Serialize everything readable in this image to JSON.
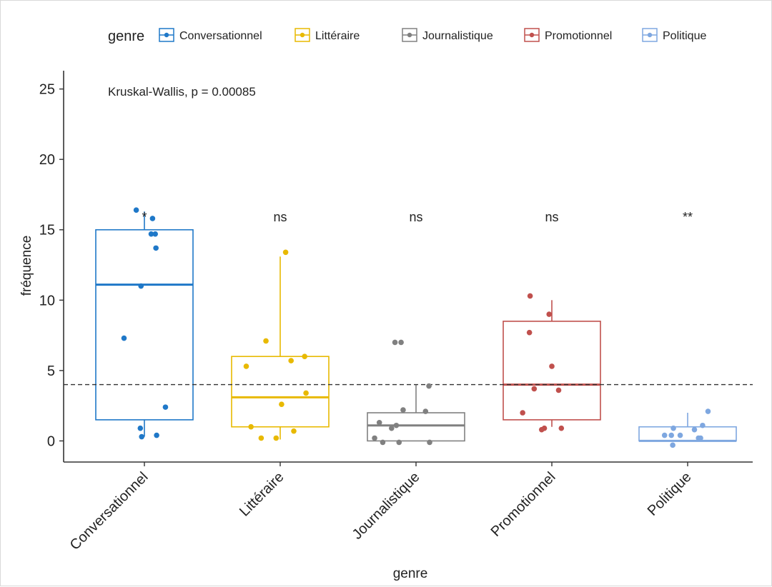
{
  "chart_data": {
    "type": "boxplot",
    "categories": [
      "Conversationnel",
      "Littéraire",
      "Journalistique",
      "Promotionnel",
      "Politique"
    ],
    "colors": [
      "#1f78c8",
      "#e8b900",
      "#808080",
      "#c0504d",
      "#7ea7e0"
    ],
    "boxes": [
      {
        "whisker_low": 0.3,
        "q1": 1.5,
        "median": 11.1,
        "q3": 15.0,
        "whisker_high": 16.3
      },
      {
        "whisker_low": 0.1,
        "q1": 1.0,
        "median": 3.1,
        "q3": 6.0,
        "whisker_high": 13.1
      },
      {
        "whisker_low": 0.0,
        "q1": 0.0,
        "median": 1.1,
        "q3": 2.0,
        "whisker_high": 4.0
      },
      {
        "whisker_low": 1.0,
        "q1": 1.5,
        "median": 4.0,
        "q3": 8.5,
        "whisker_high": 10.0
      },
      {
        "whisker_low": 0.0,
        "q1": 0.0,
        "median": 0.0,
        "q3": 1.0,
        "whisker_high": 2.0
      }
    ],
    "points": [
      {
        "category": 0,
        "jitter": -0.12,
        "value": 16.4
      },
      {
        "category": 0,
        "jitter": 0.12,
        "value": 15.8
      },
      {
        "category": 0,
        "jitter": 0.1,
        "value": 14.7
      },
      {
        "category": 0,
        "jitter": 0.16,
        "value": 14.7
      },
      {
        "category": 0,
        "jitter": 0.17,
        "value": 13.7
      },
      {
        "category": 0,
        "jitter": -0.05,
        "value": 11.0
      },
      {
        "category": 0,
        "jitter": -0.3,
        "value": 7.3
      },
      {
        "category": 0,
        "jitter": 0.31,
        "value": 2.4
      },
      {
        "category": 0,
        "jitter": -0.06,
        "value": 0.9
      },
      {
        "category": 0,
        "jitter": -0.04,
        "value": 0.3
      },
      {
        "category": 0,
        "jitter": 0.18,
        "value": 0.4
      },
      {
        "category": 1,
        "jitter": 0.08,
        "value": 13.4
      },
      {
        "category": 1,
        "jitter": -0.21,
        "value": 7.1
      },
      {
        "category": 1,
        "jitter": 0.36,
        "value": 6.0
      },
      {
        "category": 1,
        "jitter": 0.16,
        "value": 5.7
      },
      {
        "category": 1,
        "jitter": -0.5,
        "value": 5.3
      },
      {
        "category": 1,
        "jitter": 0.38,
        "value": 3.4
      },
      {
        "category": 1,
        "jitter": 0.02,
        "value": 2.6
      },
      {
        "category": 1,
        "jitter": -0.43,
        "value": 1.0
      },
      {
        "category": 1,
        "jitter": 0.2,
        "value": 0.7
      },
      {
        "category": 1,
        "jitter": -0.06,
        "value": 0.2
      },
      {
        "category": 1,
        "jitter": -0.28,
        "value": 0.2
      },
      {
        "category": 2,
        "jitter": -0.31,
        "value": 7.0
      },
      {
        "category": 2,
        "jitter": -0.22,
        "value": 7.0
      },
      {
        "category": 2,
        "jitter": 0.19,
        "value": 3.9
      },
      {
        "category": 2,
        "jitter": -0.19,
        "value": 2.2
      },
      {
        "category": 2,
        "jitter": 0.14,
        "value": 2.1
      },
      {
        "category": 2,
        "jitter": -0.54,
        "value": 1.3
      },
      {
        "category": 2,
        "jitter": -0.29,
        "value": 1.1
      },
      {
        "category": 2,
        "jitter": -0.36,
        "value": 0.9
      },
      {
        "category": 2,
        "jitter": -0.61,
        "value": 0.2
      },
      {
        "category": 2,
        "jitter": -0.49,
        "value": -0.1
      },
      {
        "category": 2,
        "jitter": -0.25,
        "value": -0.1
      },
      {
        "category": 2,
        "jitter": 0.2,
        "value": -0.1
      },
      {
        "category": 3,
        "jitter": -0.32,
        "value": 10.3
      },
      {
        "category": 3,
        "jitter": -0.04,
        "value": 9.0
      },
      {
        "category": 3,
        "jitter": -0.33,
        "value": 7.7
      },
      {
        "category": 3,
        "jitter": 0.0,
        "value": 5.3
      },
      {
        "category": 3,
        "jitter": -0.26,
        "value": 3.7
      },
      {
        "category": 3,
        "jitter": 0.1,
        "value": 3.6
      },
      {
        "category": 3,
        "jitter": -0.43,
        "value": 2.0
      },
      {
        "category": 3,
        "jitter": -0.11,
        "value": 0.9
      },
      {
        "category": 3,
        "jitter": -0.15,
        "value": 0.8
      },
      {
        "category": 3,
        "jitter": 0.14,
        "value": 0.9
      },
      {
        "category": 4,
        "jitter": 0.3,
        "value": 2.1
      },
      {
        "category": 4,
        "jitter": 0.22,
        "value": 1.1
      },
      {
        "category": 4,
        "jitter": -0.21,
        "value": 0.9
      },
      {
        "category": 4,
        "jitter": 0.1,
        "value": 0.8
      },
      {
        "category": 4,
        "jitter": -0.34,
        "value": 0.4
      },
      {
        "category": 4,
        "jitter": -0.24,
        "value": 0.4
      },
      {
        "category": 4,
        "jitter": -0.11,
        "value": 0.4
      },
      {
        "category": 4,
        "jitter": 0.16,
        "value": 0.2
      },
      {
        "category": 4,
        "jitter": 0.19,
        "value": 0.2
      },
      {
        "category": 4,
        "jitter": -0.22,
        "value": -0.3
      }
    ],
    "significance": [
      "*",
      "ns",
      "ns",
      "ns",
      "**"
    ],
    "reference_line": 4.0,
    "annotation": "Kruskal-Wallis, p = 0.00085",
    "xlabel": "genre",
    "ylabel": "fréquence",
    "ylim": [
      -1.5,
      26.3
    ],
    "yticks": [
      0,
      5,
      10,
      15,
      20,
      25
    ],
    "legend": {
      "title": "genre",
      "position": "top"
    },
    "grid": false
  }
}
